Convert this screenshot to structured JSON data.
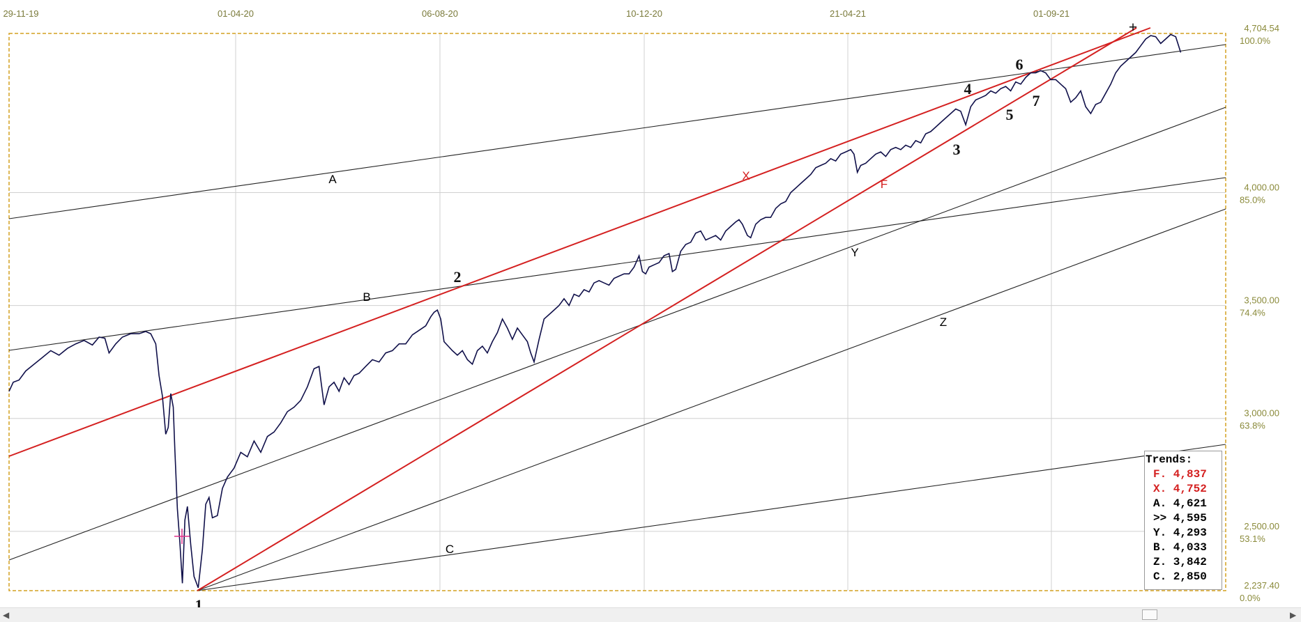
{
  "chart_data": {
    "type": "line",
    "x_ticks": [
      "29-11-19",
      "01-04-20",
      "06-08-20",
      "10-12-20",
      "21-04-21",
      "01-09-21"
    ],
    "y_ticks": [
      {
        "value": "4,704.54",
        "pct": "100.0%"
      },
      {
        "value": "4,000.00",
        "pct": "85.0%"
      },
      {
        "value": "3,500.00",
        "pct": "74.4%"
      },
      {
        "value": "3,000.00",
        "pct": "63.8%"
      },
      {
        "value": "2,500.00",
        "pct": "53.1%"
      },
      {
        "value": "2,237.40",
        "pct": "0.0%"
      }
    ],
    "ylim": [
      2237.4,
      4704.54
    ],
    "price_series": [
      [
        0,
        3120
      ],
      [
        5,
        3160
      ],
      [
        12,
        3170
      ],
      [
        20,
        3210
      ],
      [
        30,
        3240
      ],
      [
        40,
        3270
      ],
      [
        50,
        3300
      ],
      [
        60,
        3280
      ],
      [
        70,
        3310
      ],
      [
        80,
        3330
      ],
      [
        90,
        3345
      ],
      [
        100,
        3325
      ],
      [
        108,
        3360
      ],
      [
        115,
        3355
      ],
      [
        120,
        3290
      ],
      [
        128,
        3330
      ],
      [
        136,
        3360
      ],
      [
        146,
        3375
      ],
      [
        156,
        3375
      ],
      [
        164,
        3385
      ],
      [
        170,
        3375
      ],
      [
        176,
        3330
      ],
      [
        180,
        3190
      ],
      [
        184,
        3100
      ],
      [
        188,
        2930
      ],
      [
        191,
        2960
      ],
      [
        194,
        3110
      ],
      [
        197,
        3050
      ],
      [
        199,
        2860
      ],
      [
        202,
        2600
      ],
      [
        205,
        2450
      ],
      [
        208,
        2270
      ],
      [
        211,
        2550
      ],
      [
        214,
        2610
      ],
      [
        218,
        2440
      ],
      [
        222,
        2300
      ],
      [
        227,
        2250
      ],
      [
        232,
        2420
      ],
      [
        236,
        2620
      ],
      [
        240,
        2650
      ],
      [
        244,
        2560
      ],
      [
        250,
        2570
      ],
      [
        256,
        2690
      ],
      [
        262,
        2740
      ],
      [
        270,
        2780
      ],
      [
        278,
        2850
      ],
      [
        286,
        2830
      ],
      [
        294,
        2900
      ],
      [
        302,
        2850
      ],
      [
        310,
        2920
      ],
      [
        318,
        2940
      ],
      [
        326,
        2980
      ],
      [
        334,
        3030
      ],
      [
        342,
        3050
      ],
      [
        350,
        3080
      ],
      [
        358,
        3140
      ],
      [
        366,
        3220
      ],
      [
        372,
        3230
      ],
      [
        378,
        3060
      ],
      [
        384,
        3140
      ],
      [
        390,
        3160
      ],
      [
        396,
        3120
      ],
      [
        402,
        3180
      ],
      [
        408,
        3150
      ],
      [
        414,
        3190
      ],
      [
        420,
        3200
      ],
      [
        428,
        3230
      ],
      [
        436,
        3260
      ],
      [
        444,
        3250
      ],
      [
        452,
        3290
      ],
      [
        460,
        3300
      ],
      [
        468,
        3330
      ],
      [
        476,
        3330
      ],
      [
        484,
        3370
      ],
      [
        492,
        3390
      ],
      [
        500,
        3410
      ],
      [
        506,
        3450
      ],
      [
        510,
        3470
      ],
      [
        514,
        3480
      ],
      [
        518,
        3440
      ],
      [
        522,
        3340
      ],
      [
        527,
        3320
      ],
      [
        532,
        3300
      ],
      [
        538,
        3280
      ],
      [
        544,
        3300
      ],
      [
        550,
        3260
      ],
      [
        556,
        3240
      ],
      [
        562,
        3300
      ],
      [
        568,
        3320
      ],
      [
        574,
        3290
      ],
      [
        580,
        3340
      ],
      [
        586,
        3380
      ],
      [
        592,
        3440
      ],
      [
        598,
        3400
      ],
      [
        604,
        3350
      ],
      [
        610,
        3400
      ],
      [
        616,
        3370
      ],
      [
        622,
        3340
      ],
      [
        626,
        3290
      ],
      [
        630,
        3250
      ],
      [
        636,
        3350
      ],
      [
        642,
        3440
      ],
      [
        648,
        3460
      ],
      [
        654,
        3480
      ],
      [
        660,
        3500
      ],
      [
        666,
        3530
      ],
      [
        672,
        3500
      ],
      [
        678,
        3550
      ],
      [
        684,
        3540
      ],
      [
        690,
        3570
      ],
      [
        696,
        3560
      ],
      [
        702,
        3600
      ],
      [
        708,
        3610
      ],
      [
        714,
        3600
      ],
      [
        720,
        3590
      ],
      [
        726,
        3620
      ],
      [
        732,
        3630
      ],
      [
        738,
        3640
      ],
      [
        744,
        3640
      ],
      [
        750,
        3670
      ],
      [
        756,
        3720
      ],
      [
        760,
        3650
      ],
      [
        764,
        3640
      ],
      [
        768,
        3670
      ],
      [
        774,
        3680
      ],
      [
        780,
        3690
      ],
      [
        786,
        3720
      ],
      [
        792,
        3730
      ],
      [
        796,
        3650
      ],
      [
        800,
        3660
      ],
      [
        806,
        3740
      ],
      [
        812,
        3770
      ],
      [
        818,
        3780
      ],
      [
        824,
        3820
      ],
      [
        830,
        3830
      ],
      [
        836,
        3790
      ],
      [
        842,
        3800
      ],
      [
        848,
        3810
      ],
      [
        854,
        3790
      ],
      [
        860,
        3830
      ],
      [
        866,
        3850
      ],
      [
        872,
        3870
      ],
      [
        876,
        3880
      ],
      [
        880,
        3860
      ],
      [
        886,
        3810
      ],
      [
        890,
        3800
      ],
      [
        896,
        3860
      ],
      [
        902,
        3880
      ],
      [
        908,
        3890
      ],
      [
        914,
        3890
      ],
      [
        920,
        3930
      ],
      [
        926,
        3950
      ],
      [
        932,
        3960
      ],
      [
        938,
        4000
      ],
      [
        944,
        4020
      ],
      [
        950,
        4040
      ],
      [
        956,
        4060
      ],
      [
        962,
        4080
      ],
      [
        968,
        4110
      ],
      [
        974,
        4120
      ],
      [
        980,
        4130
      ],
      [
        986,
        4150
      ],
      [
        992,
        4140
      ],
      [
        998,
        4170
      ],
      [
        1004,
        4180
      ],
      [
        1010,
        4190
      ],
      [
        1014,
        4170
      ],
      [
        1018,
        4090
      ],
      [
        1022,
        4120
      ],
      [
        1028,
        4130
      ],
      [
        1034,
        4150
      ],
      [
        1040,
        4170
      ],
      [
        1046,
        4180
      ],
      [
        1052,
        4160
      ],
      [
        1058,
        4190
      ],
      [
        1064,
        4200
      ],
      [
        1070,
        4190
      ],
      [
        1076,
        4210
      ],
      [
        1082,
        4200
      ],
      [
        1088,
        4230
      ],
      [
        1094,
        4220
      ],
      [
        1100,
        4260
      ],
      [
        1106,
        4270
      ],
      [
        1112,
        4290
      ],
      [
        1118,
        4310
      ],
      [
        1124,
        4330
      ],
      [
        1130,
        4350
      ],
      [
        1136,
        4370
      ],
      [
        1142,
        4360
      ],
      [
        1148,
        4300
      ],
      [
        1154,
        4380
      ],
      [
        1160,
        4410
      ],
      [
        1166,
        4420
      ],
      [
        1172,
        4430
      ],
      [
        1178,
        4450
      ],
      [
        1184,
        4440
      ],
      [
        1190,
        4460
      ],
      [
        1196,
        4470
      ],
      [
        1202,
        4450
      ],
      [
        1208,
        4490
      ],
      [
        1214,
        4480
      ],
      [
        1220,
        4510
      ],
      [
        1226,
        4530
      ],
      [
        1232,
        4530
      ],
      [
        1238,
        4540
      ],
      [
        1244,
        4530
      ],
      [
        1250,
        4500
      ],
      [
        1256,
        4500
      ],
      [
        1262,
        4480
      ],
      [
        1268,
        4460
      ],
      [
        1274,
        4400
      ],
      [
        1280,
        4420
      ],
      [
        1286,
        4450
      ],
      [
        1292,
        4380
      ],
      [
        1298,
        4350
      ],
      [
        1304,
        4390
      ],
      [
        1310,
        4400
      ],
      [
        1316,
        4440
      ],
      [
        1322,
        4480
      ],
      [
        1328,
        4530
      ],
      [
        1334,
        4560
      ],
      [
        1340,
        4580
      ],
      [
        1346,
        4600
      ],
      [
        1352,
        4620
      ],
      [
        1358,
        4650
      ],
      [
        1364,
        4680
      ],
      [
        1370,
        4695
      ],
      [
        1376,
        4690
      ],
      [
        1382,
        4660
      ],
      [
        1388,
        4680
      ],
      [
        1394,
        4700
      ],
      [
        1400,
        4690
      ],
      [
        1406,
        4620
      ]
    ],
    "wave_labels": [
      "1",
      "2",
      "3",
      "4",
      "5",
      "6",
      "7"
    ],
    "trend_labels": [
      "A",
      "B",
      "C",
      "X",
      "F",
      "Y",
      "Z"
    ],
    "markers": {
      "top": "+"
    },
    "legend": {
      "title": "Trends:",
      "rows": [
        {
          "text": "F. 4,837",
          "color": "#d42020"
        },
        {
          "text": "X. 4,752",
          "color": "#d42020"
        },
        {
          "text": "A. 4,621",
          "color": "#000000"
        },
        {
          "text": ">> 4,595",
          "color": "#000000"
        },
        {
          "text": "Y. 4,293",
          "color": "#000000"
        },
        {
          "text": "B. 4,033",
          "color": "#000000"
        },
        {
          "text": "Z. 3,842",
          "color": "#000000"
        },
        {
          "text": "C. 2,850",
          "color": "#000000"
        }
      ]
    },
    "colors": {
      "price": "#10104a",
      "red_trend": "#d42020",
      "black_trend": "#222222",
      "frame": "#d4a020",
      "grid": "#d0d0d0"
    }
  },
  "scrollbar": {
    "left_arrow": "◀",
    "right_arrow": "▶"
  }
}
